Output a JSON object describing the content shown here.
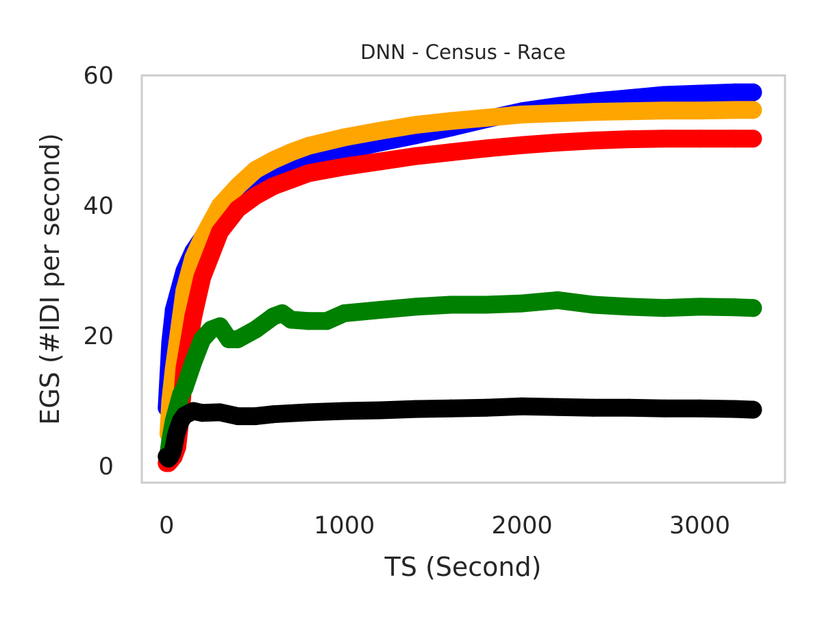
{
  "chart_data": {
    "type": "line",
    "title": "DNN - Census - Race",
    "xlabel": "TS (Second)",
    "ylabel": "EGS (#IDI  per second)",
    "xlim": [
      -140,
      3480
    ],
    "ylim": [
      -2.5,
      60
    ],
    "xticks": [
      0,
      1000,
      2000,
      3000
    ],
    "yticks": [
      0,
      20,
      40,
      60
    ],
    "grid": false,
    "legend": "none",
    "series": [
      {
        "color": "#0000ff",
        "x": [
          0,
          10,
          20,
          40,
          60,
          80,
          100,
          150,
          200,
          300,
          400,
          500,
          600,
          700,
          800,
          1000,
          1200,
          1400,
          1600,
          1800,
          2000,
          2200,
          2400,
          2600,
          2800,
          3000,
          3200,
          3300
        ],
        "y": [
          9,
          14,
          19,
          24,
          26,
          28,
          30,
          33,
          35,
          39,
          42,
          44,
          45.5,
          46.5,
          47.3,
          48.5,
          49.7,
          50.8,
          52,
          53.3,
          54.5,
          55.3,
          56,
          56.5,
          57,
          57.2,
          57.4,
          57.4
        ]
      },
      {
        "color": "#ffa500",
        "x": [
          10,
          20,
          40,
          60,
          80,
          100,
          150,
          200,
          300,
          400,
          500,
          600,
          700,
          800,
          1000,
          1200,
          1400,
          1600,
          1800,
          2000,
          2200,
          2400,
          2600,
          2800,
          3000,
          3200,
          3300
        ],
        "y": [
          5,
          10,
          15,
          19,
          23,
          27,
          32,
          35,
          40,
          43,
          45.5,
          47,
          48.2,
          49.2,
          50.5,
          51.5,
          52.4,
          53,
          53.5,
          54,
          54.2,
          54.4,
          54.5,
          54.6,
          54.6,
          54.7,
          54.7
        ]
      },
      {
        "color": "#ff0000",
        "x": [
          0,
          10,
          20,
          40,
          60,
          80,
          100,
          150,
          200,
          300,
          400,
          500,
          600,
          700,
          800,
          1000,
          1200,
          1400,
          1600,
          1800,
          2000,
          2200,
          2400,
          2600,
          2800,
          3000,
          3200,
          3300
        ],
        "y": [
          0.5,
          0.5,
          0.8,
          1.5,
          3,
          8,
          15,
          23,
          29,
          36,
          39.5,
          41.5,
          43,
          44,
          45,
          46,
          46.8,
          47.6,
          48.2,
          48.8,
          49.3,
          49.7,
          50,
          50.2,
          50.3,
          50.3,
          50.3,
          50.3
        ]
      },
      {
        "color": "#008000",
        "x": [
          10,
          20,
          40,
          60,
          80,
          100,
          150,
          200,
          250,
          300,
          350,
          400,
          500,
          600,
          650,
          700,
          800,
          900,
          1000,
          1200,
          1400,
          1600,
          1800,
          2000,
          2200,
          2400,
          2600,
          2800,
          3000,
          3200,
          3300
        ],
        "y": [
          2,
          4,
          7,
          9,
          11,
          12,
          16,
          19.5,
          21,
          21.5,
          19.5,
          19.5,
          21,
          23,
          23.5,
          22.5,
          22.3,
          22.3,
          23.5,
          24,
          24.5,
          24.8,
          24.8,
          25,
          25.5,
          24.8,
          24.5,
          24.3,
          24.5,
          24.4,
          24.3
        ]
      },
      {
        "color": "#000000",
        "x": [
          0,
          10,
          20,
          30,
          40,
          50,
          60,
          80,
          100,
          150,
          200,
          300,
          400,
          500,
          600,
          800,
          1000,
          1200,
          1400,
          1600,
          1800,
          2000,
          2200,
          2400,
          2600,
          2800,
          3000,
          3200,
          3300
        ],
        "y": [
          1.5,
          1.2,
          1.5,
          2,
          3,
          4.5,
          5.5,
          7,
          7.8,
          8.5,
          8.2,
          8.3,
          7.7,
          7.7,
          8,
          8.3,
          8.5,
          8.6,
          8.8,
          8.9,
          9,
          9.2,
          9.1,
          9,
          9,
          8.9,
          8.9,
          8.8,
          8.7
        ]
      }
    ]
  }
}
